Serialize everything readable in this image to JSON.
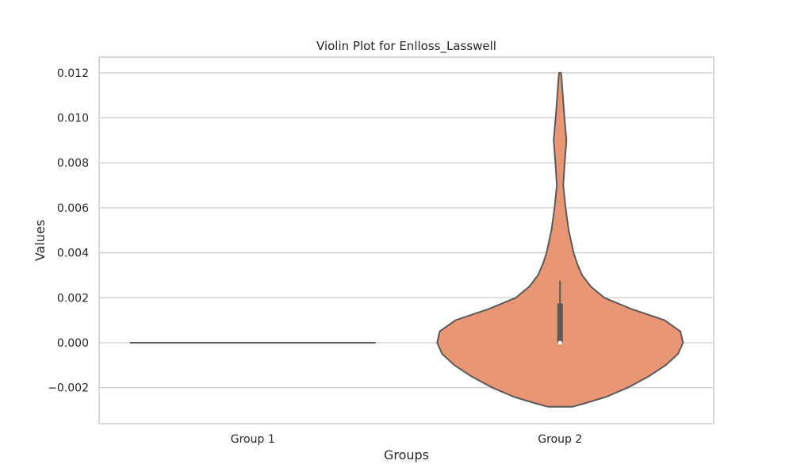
{
  "chart_data": {
    "type": "violin",
    "title": "Violin Plot for Enlloss_Lasswell",
    "xlabel": "Groups",
    "ylabel": "Values",
    "categories": [
      "Group 1",
      "Group 2"
    ],
    "ylim": [
      -0.0036,
      0.0127
    ],
    "yticks": [
      -0.002,
      0.0,
      0.002,
      0.004,
      0.006,
      0.008,
      0.01,
      0.012
    ],
    "ytick_labels": [
      "−0.002",
      "0.000",
      "0.002",
      "0.004",
      "0.006",
      "0.008",
      "0.010",
      "0.012"
    ],
    "grid": true,
    "colors": {
      "violin_fill": "#e99675",
      "violin_edge": "#5a5a5a",
      "box": "#5a5a5a",
      "median": "#ffffff",
      "grid": "#cccccc",
      "frame": "#cccccc"
    },
    "groups": [
      {
        "name": "Group 1",
        "min": 0.0,
        "q1": 0.0,
        "median": 0.0,
        "q3": 0.0,
        "whisker_low": 0.0,
        "whisker_high": 0.0,
        "density": [
          [
            0.0,
            1.0
          ]
        ]
      },
      {
        "name": "Group 2",
        "min": -0.00285,
        "q1": 0.0,
        "median": 0.0,
        "q3": 0.00175,
        "whisker_low": 0.0,
        "whisker_high": 0.00275,
        "density": [
          [
            -0.00285,
            0.1
          ],
          [
            -0.0027,
            0.2
          ],
          [
            -0.0024,
            0.38
          ],
          [
            -0.002,
            0.55
          ],
          [
            -0.0015,
            0.72
          ],
          [
            -0.001,
            0.86
          ],
          [
            -0.0005,
            0.96
          ],
          [
            0.0,
            1.0
          ],
          [
            0.0005,
            0.98
          ],
          [
            0.001,
            0.85
          ],
          [
            0.0015,
            0.58
          ],
          [
            0.002,
            0.36
          ],
          [
            0.0025,
            0.25
          ],
          [
            0.003,
            0.18
          ],
          [
            0.0035,
            0.14
          ],
          [
            0.004,
            0.11
          ],
          [
            0.005,
            0.07
          ],
          [
            0.006,
            0.045
          ],
          [
            0.007,
            0.026
          ],
          [
            0.008,
            0.038
          ],
          [
            0.009,
            0.052
          ],
          [
            0.01,
            0.036
          ],
          [
            0.011,
            0.022
          ],
          [
            0.0118,
            0.012
          ],
          [
            0.012,
            0.008
          ]
        ]
      }
    ]
  }
}
